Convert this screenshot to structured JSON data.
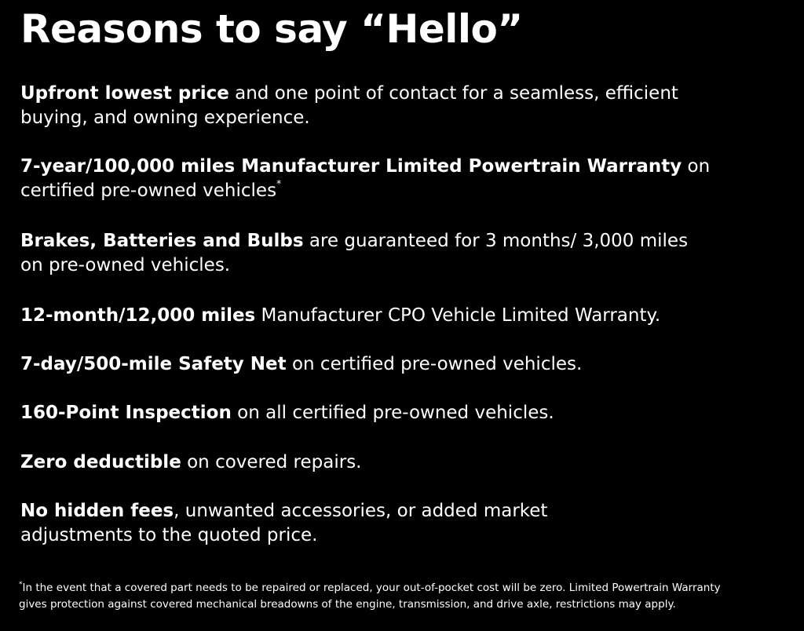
{
  "title": "Reasons to say “Hello”",
  "items": [
    {
      "lines": [
        [
          {
            "b": "Upfront lowest price"
          },
          {
            "t": " and one point of contact for a seamless, efficient"
          }
        ],
        [
          {
            "t": "buying, and owning experience."
          }
        ]
      ]
    },
    {
      "lines": [
        [
          {
            "b": "7-year/100,000 miles Manufacturer Limited Powertrain Warranty"
          },
          {
            "t": " on"
          }
        ],
        [
          {
            "t": "certified pre-owned vehicles"
          },
          {
            "sup": "*"
          }
        ]
      ]
    },
    {
      "lines": [
        [
          {
            "b": "Brakes, Batteries and Bulbs"
          },
          {
            "t": " are guaranteed for 3 months/ 3,000 miles"
          }
        ],
        [
          {
            "t": "on pre-owned vehicles."
          }
        ]
      ]
    },
    {
      "lines": [
        [
          {
            "b": "12-month/12,000 miles"
          },
          {
            "t": " Manufacturer CPO Vehicle Limited Warranty."
          }
        ]
      ]
    },
    {
      "lines": [
        [
          {
            "b": "7-day/500-mile Safety Net"
          },
          {
            "t": " on certified pre-owned vehicles."
          }
        ]
      ]
    },
    {
      "lines": [
        [
          {
            "b": "160-Point Inspection"
          },
          {
            "t": " on all certified pre-owned vehicles."
          }
        ]
      ]
    },
    {
      "lines": [
        [
          {
            "b": "Zero deductible"
          },
          {
            "t": " on covered repairs."
          }
        ]
      ]
    },
    {
      "lines": [
        [
          {
            "b": "No hidden fees"
          },
          {
            "t": ", unwanted accessories, or added market"
          }
        ],
        [
          {
            "t": "adjustments to the quoted price."
          }
        ]
      ]
    }
  ],
  "footnote": {
    "marker": "*",
    "line1": "In the event that a covered part needs to be repaired or replaced, your out-of-pocket cost will be zero. Limited Powertrain Warranty",
    "line2": "gives protection against covered mechanical breadowns of the engine, transmission, and drive axle, restrictions may apply."
  }
}
